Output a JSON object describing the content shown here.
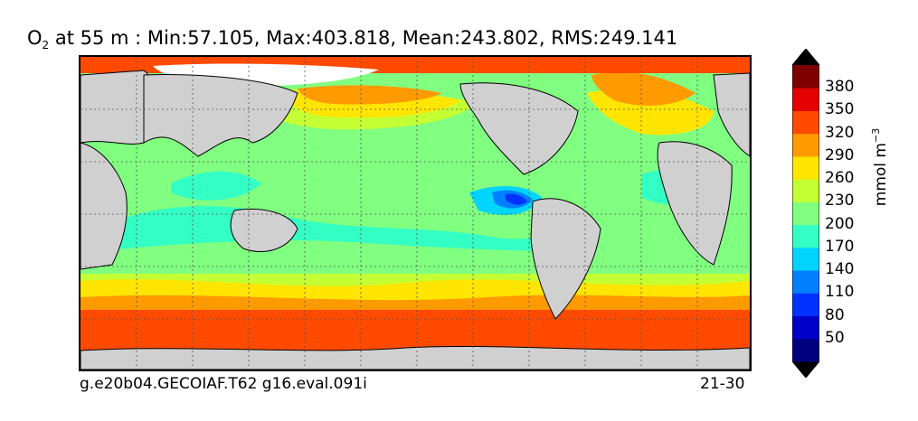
{
  "title": {
    "variable": "O",
    "subscript": "2",
    "rest": " at 55 m : Min:57.105, Max:403.818, Mean:243.802, RMS:249.141"
  },
  "footer": {
    "case_name": "g.e20b04.GECOIAF.T62 g16.eval.091i",
    "years": "21-30"
  },
  "colorbar": {
    "units_base": "mmol m",
    "units_exp": "−3",
    "levels": [
      "50",
      "80",
      "110",
      "140",
      "170",
      "200",
      "230",
      "260",
      "290",
      "320",
      "350",
      "380"
    ],
    "colors": [
      "#00007f",
      "#0000c8",
      "#0032ff",
      "#0080ff",
      "#00d4ff",
      "#33ffc4",
      "#80ff80",
      "#c4ff33",
      "#ffe500",
      "#ff9a00",
      "#ff4a00",
      "#e50000",
      "#7f0000"
    ]
  },
  "colors": {
    "land": "#d0d0d0",
    "ice_mask": "#ffffff"
  }
}
